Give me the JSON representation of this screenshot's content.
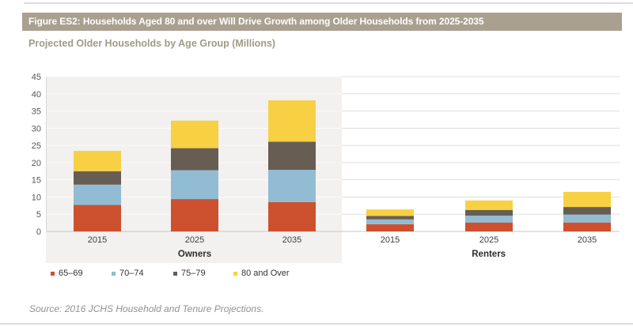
{
  "figure": {
    "title": "Figure ES2: Households Aged 80 and over Will Drive Growth among Older Households from 2025-2035",
    "subtitle": "Projected Older Households by Age Group (Millions)",
    "source": "Source: 2016 JCHS Household and Tenure Projections."
  },
  "colors": {
    "header_bar": "#a9a08f",
    "subtitle_text": "#a29988",
    "plot_backdrop": "#f2f1ef",
    "gridline": "#e0dedd",
    "gridline_on_gray": "#fafaf8",
    "baseline": "#c8c7c5",
    "tick_text": "#55565a",
    "category_text": "#404040",
    "group_text": "#2d2d2d",
    "source_text": "#8e9194"
  },
  "chart_data": {
    "type": "bar",
    "stacked": true,
    "title": "Projected Older Households by Age Group (Millions)",
    "xlabel": "",
    "ylabel": "",
    "ylim": [
      0,
      45
    ],
    "ytick_step": 5,
    "grid": true,
    "legend_position": "bottom",
    "groups": [
      {
        "label": "Owners",
        "categories": [
          "2015",
          "2025",
          "2035"
        ]
      },
      {
        "label": "Renters",
        "categories": [
          "2015",
          "2025",
          "2035"
        ]
      }
    ],
    "series": [
      {
        "name": "65–69",
        "color": "#cd512f",
        "values": [
          7.7,
          9.4,
          8.5,
          2.1,
          2.6,
          2.6
        ]
      },
      {
        "name": "70–74",
        "color": "#92bcd3",
        "values": [
          5.9,
          8.4,
          9.4,
          1.4,
          2.0,
          2.3
        ]
      },
      {
        "name": "75–79",
        "color": "#675d53",
        "values": [
          3.9,
          6.4,
          8.2,
          1.0,
          1.6,
          2.2
        ]
      },
      {
        "name": "80 and Over",
        "color": "#f7d044",
        "values": [
          5.9,
          8.0,
          12.0,
          1.9,
          2.8,
          4.4
        ]
      }
    ]
  }
}
